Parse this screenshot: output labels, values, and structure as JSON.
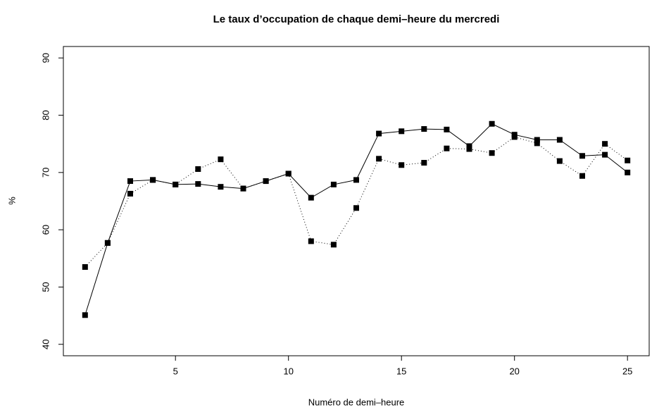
{
  "chart_data": {
    "type": "line",
    "title": "Le taux d’occupation de chaque demi–heure du mercredi",
    "x_label": "Numéro de demi–heure",
    "y_label": "%",
    "x": [
      1,
      2,
      3,
      4,
      5,
      6,
      7,
      8,
      9,
      10,
      11,
      12,
      13,
      14,
      15,
      16,
      17,
      18,
      19,
      20,
      21,
      22,
      23,
      24,
      25
    ],
    "series": [
      {
        "color": "#000000",
        "line_style": "solid",
        "values": [
          45.1,
          57.7,
          68.5,
          68.7,
          67.9,
          68.0,
          67.5,
          67.2,
          68.5,
          69.8,
          65.6,
          67.9,
          68.7,
          76.8,
          77.2,
          77.6,
          77.5,
          74.6,
          78.5,
          76.6,
          75.7,
          75.7,
          72.9,
          73.1,
          70.0
        ]
      },
      {
        "color": "#000000",
        "line_style": "dotted",
        "values": [
          53.5,
          57.7,
          66.3,
          68.7,
          67.9,
          70.6,
          72.3,
          67.2,
          68.5,
          69.8,
          58.0,
          57.4,
          63.8,
          72.4,
          71.3,
          71.7,
          74.2,
          74.1,
          73.4,
          76.2,
          75.1,
          72.0,
          69.4,
          75.0,
          72.1
        ]
      }
    ],
    "xlim": [
      0.04,
      25.96
    ],
    "xticks": [
      5,
      10,
      15,
      20,
      25
    ],
    "ylim": [
      38,
      92
    ],
    "yticks": [
      40,
      50,
      60,
      70,
      80,
      90
    ],
    "marker": "square",
    "grid": false
  }
}
